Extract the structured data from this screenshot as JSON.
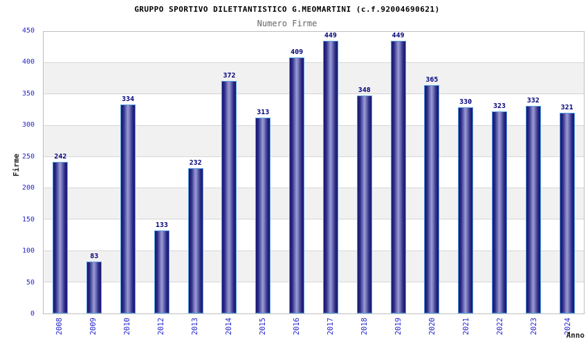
{
  "chart_data": {
    "type": "bar",
    "title": "GRUPPO SPORTIVO DILETTANTISTICO G.MEOMARTINI (c.f.92004690621)",
    "subtitle": "Numero Firme",
    "xlabel": "Anno",
    "ylabel": "Firme",
    "categories": [
      "2008",
      "2009",
      "2010",
      "2012",
      "2013",
      "2014",
      "2015",
      "2016",
      "2017",
      "2018",
      "2019",
      "2020",
      "2021",
      "2022",
      "2023",
      "2024"
    ],
    "values": [
      242,
      83,
      334,
      133,
      232,
      372,
      313,
      409,
      449,
      348,
      449,
      365,
      330,
      323,
      332,
      321
    ],
    "ylim": [
      0,
      450
    ],
    "yticks": [
      0,
      50,
      100,
      150,
      200,
      250,
      300,
      350,
      400,
      450
    ],
    "grid": "horizontal gridlines every 50 with alternating white/gray bands",
    "legend_position": "none",
    "colors": {
      "bar_fill_edge": "#15156d",
      "bar_fill_center": "#9a9ad4",
      "bar_border": "#57a0e0",
      "tick_label": "#2323cd",
      "value_label": "#00007a",
      "band_gray": "#f1f1f1",
      "gridline": "#d6d6d6",
      "title": "#000000",
      "subtitle": "#666666",
      "axis_title": "#222222"
    }
  }
}
